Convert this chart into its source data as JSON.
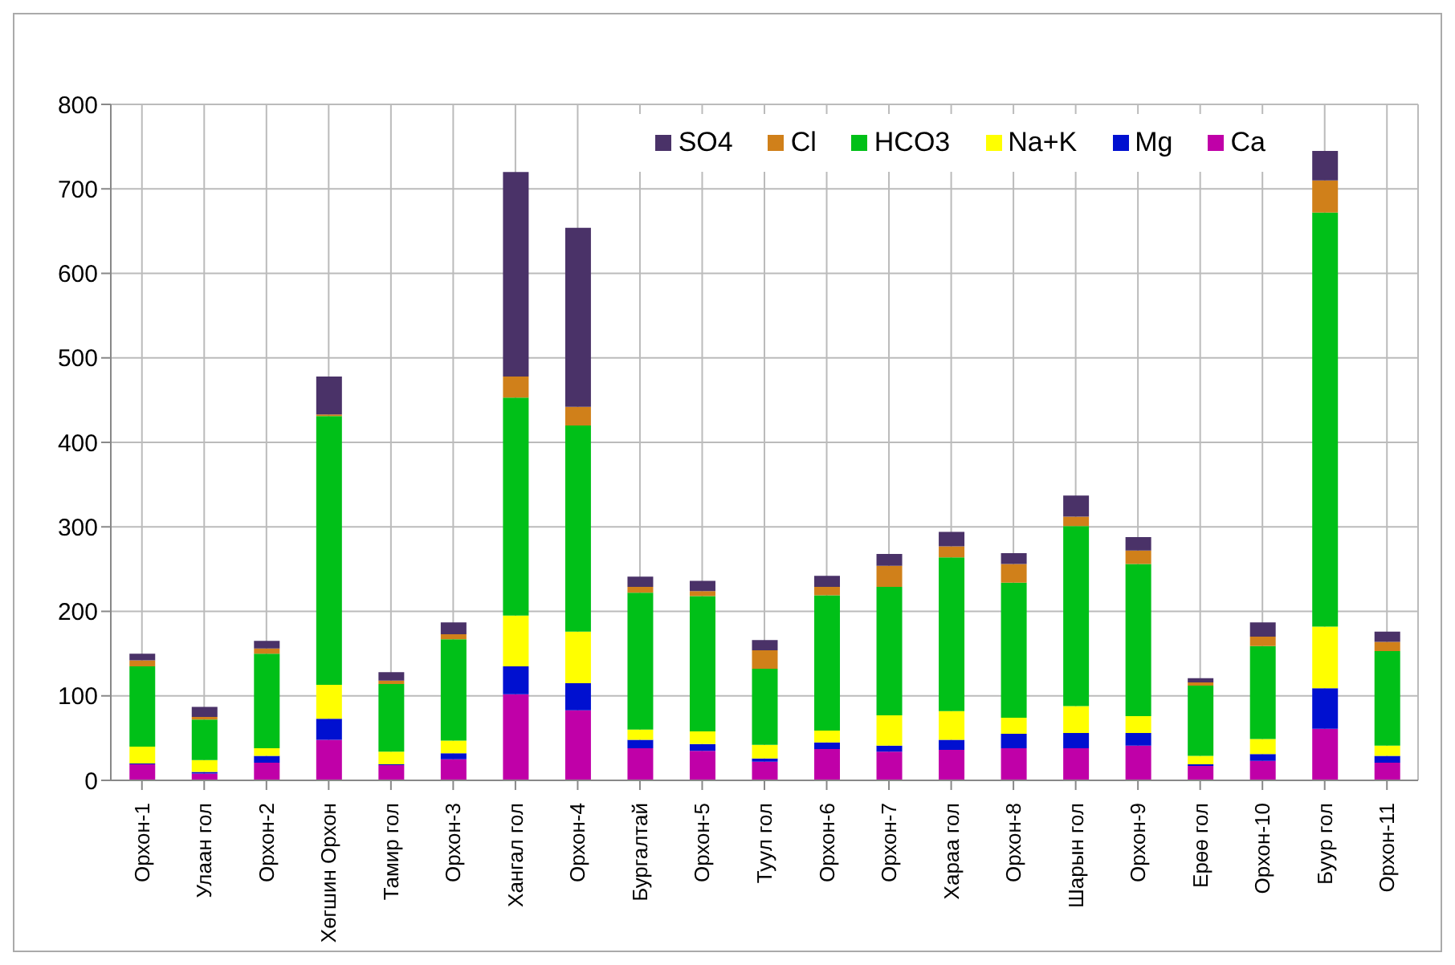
{
  "chart_data": {
    "type": "bar",
    "stacked": true,
    "categories": [
      "Орхон-1",
      "Улаан гол",
      "Орхон-2",
      "Хөгшин Орхон",
      "Тамир гол",
      "Орхон-3",
      "Хангал гол",
      "Орхон-4",
      "Бургалтай",
      "Орхон-5",
      "Туул гол",
      "Орхон-6",
      "Орхон-7",
      "Хараа гол",
      "Орхон-8",
      "Шарын гол",
      "Орхон-9",
      "Ерөө гол",
      "Орхон-10",
      "Буур гол",
      "Орхон-11"
    ],
    "series": [
      {
        "name": "Ca",
        "color": "#c000a8",
        "values": [
          19,
          8,
          21,
          48,
          18,
          25,
          102,
          83,
          38,
          35,
          22,
          37,
          34,
          36,
          38,
          38,
          41,
          17,
          23,
          61,
          21
        ]
      },
      {
        "name": "Mg",
        "color": "#0010d0",
        "values": [
          1,
          2,
          8,
          25,
          1,
          7,
          33,
          32,
          10,
          8,
          4,
          8,
          7,
          12,
          17,
          18,
          15,
          2,
          8,
          48,
          8
        ]
      },
      {
        "name": "Na+K",
        "color": "#ffff00",
        "values": [
          20,
          14,
          9,
          40,
          15,
          15,
          60,
          61,
          12,
          15,
          16,
          14,
          36,
          34,
          19,
          32,
          20,
          10,
          18,
          73,
          12
        ]
      },
      {
        "name": "HCO3",
        "color": "#00c018",
        "values": [
          95,
          48,
          112,
          318,
          80,
          120,
          258,
          244,
          162,
          160,
          90,
          160,
          152,
          182,
          160,
          213,
          180,
          83,
          110,
          490,
          112
        ]
      },
      {
        "name": "Cl",
        "color": "#d0801a",
        "values": [
          7,
          3,
          6,
          2,
          4,
          6,
          25,
          22,
          7,
          6,
          22,
          10,
          25,
          13,
          22,
          11,
          16,
          4,
          11,
          38,
          11
        ]
      },
      {
        "name": "SO4",
        "color": "#4a3268",
        "values": [
          8,
          12,
          9,
          45,
          10,
          14,
          242,
          212,
          12,
          12,
          12,
          13,
          14,
          17,
          13,
          25,
          16,
          5,
          17,
          35,
          12
        ]
      }
    ],
    "ylim": [
      0,
      800
    ],
    "yticks": [
      0,
      100,
      200,
      300,
      400,
      500,
      600,
      700,
      800
    ],
    "grid": true,
    "legend": "top right"
  }
}
